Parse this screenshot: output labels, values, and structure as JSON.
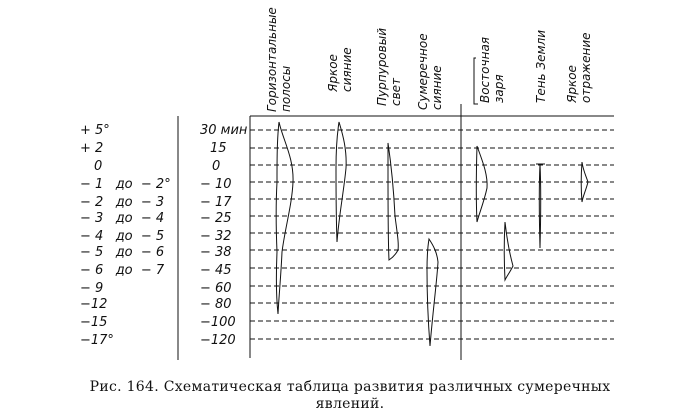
{
  "columns": [
    {
      "line1": "Горизонтальные",
      "line2": "полосы"
    },
    {
      "line1": "Яркое",
      "line2": "сияние"
    },
    {
      "line1": "Пурпуровый",
      "line2": "свет"
    },
    {
      "line1": "Сумеречное",
      "line2": "сияние"
    },
    {
      "line1": "Восточная",
      "line2": "заря"
    },
    {
      "line1": "Тень Земли",
      "line2": ""
    },
    {
      "line1": "Яркое",
      "line2": "отражение"
    }
  ],
  "rows": [
    {
      "depression": "+ 5°",
      "time": "30 мин"
    },
    {
      "depression": "+ 2",
      "time": "15"
    },
    {
      "depression": "0",
      "time": "0"
    },
    {
      "depression": "− 1   до  − 2°",
      "time": "− 10"
    },
    {
      "depression": "− 2   до  − 3",
      "time": "− 17"
    },
    {
      "depression": "− 3   до  − 4",
      "time": "− 25"
    },
    {
      "depression": "− 4   до  − 5",
      "time": "− 32"
    },
    {
      "depression": "− 5   до  − 6",
      "time": "− 38"
    },
    {
      "depression": "− 6   до  − 7",
      "time": "− 45"
    },
    {
      "depression": "− 9",
      "time": "− 60"
    },
    {
      "depression": "−12",
      "time": "− 80"
    },
    {
      "depression": "−15",
      "time": "−100"
    },
    {
      "depression": "−17°",
      "time": "−120"
    }
  ],
  "caption": {
    "line1": "Рис. 164.  Схематическая  таблица  развития  различных  сумеречных",
    "line2": "явлений."
  },
  "colors": {
    "ink": "#111111",
    "paper": "#ffffff"
  }
}
